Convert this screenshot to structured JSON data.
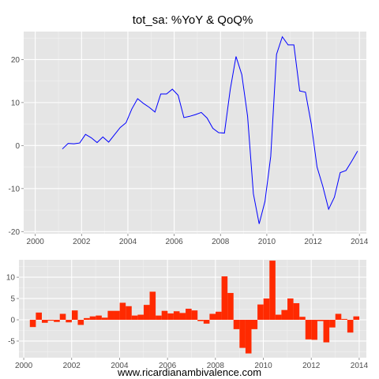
{
  "caption": "www.ricardianambivalence.com",
  "colors": {
    "panel": "#e5e5e5",
    "grid_major": "#ffffff",
    "grid_minor": "#f2f2f2",
    "line": "#0000ff",
    "bar": "#ff2a00",
    "tick_text": "#4d4d4d"
  },
  "chart_data": [
    {
      "type": "line",
      "title": "tot_sa: %YoY & QoQ%",
      "xlabel": "",
      "ylabel": "",
      "xlim": [
        1999.5,
        2014.3
      ],
      "ylim": [
        -20.5,
        26.5
      ],
      "x_ticks": [
        2000,
        2002,
        2004,
        2006,
        2008,
        2010,
        2012,
        2014
      ],
      "y_ticks": [
        -20,
        -10,
        0,
        10,
        20
      ],
      "grid": true,
      "series": [
        {
          "x": [
            2001.17,
            2001.42,
            2001.67,
            2001.92,
            2002.17,
            2002.42,
            2002.67,
            2002.92,
            2003.17,
            2003.42,
            2003.67,
            2003.92,
            2004.17,
            2004.42,
            2004.67,
            2004.92,
            2005.17,
            2005.42,
            2005.67,
            2005.92,
            2006.17,
            2006.42,
            2006.67,
            2006.92,
            2007.17,
            2007.42,
            2007.67,
            2007.92,
            2008.17,
            2008.42,
            2008.67,
            2008.92,
            2009.17,
            2009.42,
            2009.67,
            2009.92,
            2010.17,
            2010.42,
            2010.67,
            2010.92,
            2011.17,
            2011.42,
            2011.67,
            2011.92,
            2012.17,
            2012.42,
            2012.67,
            2012.92,
            2013.17,
            2013.42,
            2013.67,
            2013.92
          ],
          "values": [
            -0.8,
            0.5,
            0.4,
            0.6,
            2.6,
            1.8,
            0.7,
            2.0,
            0.8,
            2.5,
            4.2,
            5.3,
            8.5,
            10.9,
            9.8,
            8.9,
            7.8,
            12.0,
            12.0,
            13.1,
            11.7,
            6.5,
            6.8,
            7.2,
            7.7,
            6.4,
            4.0,
            3.0,
            2.9,
            13.0,
            20.7,
            16.5,
            6.8,
            -11.2,
            -18.2,
            -13.0,
            -2.5,
            21.2,
            25.3,
            23.4,
            23.4,
            12.7,
            12.4,
            5.0,
            -5.0,
            -9.5,
            -14.8,
            -12.0,
            -6.3,
            -5.8,
            -3.6,
            -1.3
          ]
        }
      ]
    },
    {
      "type": "bar",
      "xlim": [
        1999.8,
        2014.3
      ],
      "ylim": [
        -8.9,
        14.1
      ],
      "x_ticks": [
        2000,
        2002,
        2004,
        2006,
        2008,
        2010,
        2012,
        2014
      ],
      "y_ticks": [
        -5,
        0,
        5,
        10
      ],
      "grid": true,
      "series": [
        {
          "x": [
            2000.38,
            2000.63,
            2000.88,
            2001.13,
            2001.38,
            2001.63,
            2001.88,
            2002.13,
            2002.38,
            2002.63,
            2002.88,
            2003.13,
            2003.38,
            2003.63,
            2003.88,
            2004.13,
            2004.38,
            2004.63,
            2004.88,
            2005.13,
            2005.38,
            2005.63,
            2005.88,
            2006.13,
            2006.38,
            2006.63,
            2006.88,
            2007.13,
            2007.38,
            2007.63,
            2007.88,
            2008.13,
            2008.38,
            2008.63,
            2008.88,
            2009.13,
            2009.38,
            2009.63,
            2009.88,
            2010.13,
            2010.38,
            2010.63,
            2010.88,
            2011.13,
            2011.38,
            2011.63,
            2011.88,
            2012.13,
            2012.38,
            2012.63,
            2012.88,
            2013.13,
            2013.38,
            2013.63,
            2013.88
          ],
          "values": [
            -1.7,
            1.7,
            -0.7,
            -0.2,
            -0.5,
            1.4,
            -0.6,
            2.2,
            -1.2,
            0.4,
            0.8,
            1.0,
            0.5,
            2.1,
            2.1,
            4.0,
            3.2,
            1.0,
            1.2,
            3.5,
            6.6,
            1.0,
            2.1,
            1.5,
            2.0,
            1.6,
            2.6,
            2.2,
            -0.3,
            -0.9,
            1.4,
            1.9,
            10.2,
            6.3,
            -2.2,
            -6.6,
            -7.9,
            -2.2,
            3.6,
            5.0,
            13.9,
            1.2,
            2.3,
            5.0,
            3.9,
            0.7,
            -4.6,
            -4.7,
            -0.3,
            -5.3,
            -1.8,
            1.4,
            0.2,
            -3.0,
            0.8
          ]
        }
      ]
    }
  ]
}
